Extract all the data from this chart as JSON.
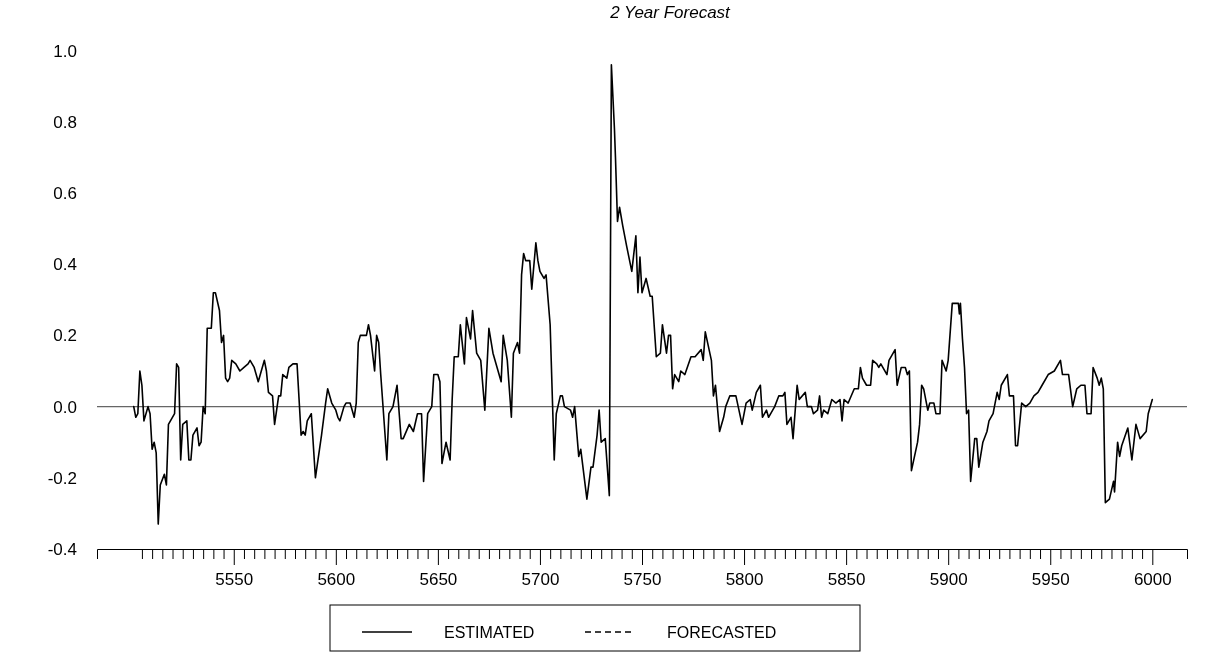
{
  "chart_data": {
    "type": "line",
    "title": "2 Year Forecast",
    "x": [
      5501,
      5502,
      5503,
      5504,
      5505,
      5506,
      5508,
      5509,
      5510,
      5511,
      5512,
      5513,
      5514,
      5516,
      5517,
      5518,
      5521,
      5522,
      5523,
      5524,
      5525,
      5527,
      5528,
      5529,
      5530,
      5532,
      5533,
      5534,
      5535,
      5536,
      5537,
      5539,
      5540,
      5541,
      5543,
      5544,
      5545,
      5546,
      5547,
      5548,
      5549,
      5551,
      5553,
      5555,
      5557,
      5558,
      5560,
      5562,
      5563,
      5565,
      5566,
      5567,
      5569,
      5570,
      5572,
      5573,
      5574,
      5576,
      5577,
      5579,
      5581,
      5583,
      5584,
      5585,
      5586,
      5588,
      5590,
      5592,
      5593,
      5595,
      5596,
      5598,
      5600,
      5601,
      5602,
      5604,
      5605,
      5607,
      5609,
      5610,
      5611,
      5612,
      5614,
      5615,
      5616,
      5617,
      5619,
      5620,
      5621,
      5622,
      5625,
      5626,
      5628,
      5630,
      5632,
      5633,
      5636,
      5638,
      5640,
      5642,
      5643,
      5645,
      5647,
      5648,
      5650,
      5651,
      5652,
      5654,
      5656,
      5657,
      5658,
      5660,
      5661,
      5663,
      5664,
      5666,
      5667,
      5669,
      5671,
      5673,
      5675,
      5677,
      5681,
      5682,
      5684,
      5686,
      5687,
      5689,
      5690,
      5691,
      5692,
      5693,
      5695,
      5696,
      5698,
      5699,
      5700,
      5702,
      5703,
      5705,
      5707,
      5708,
      5710,
      5711,
      5712,
      5715,
      5716,
      5717,
      5719,
      5720,
      5723,
      5725,
      5726,
      5728,
      5729,
      5730,
      5732,
      5734,
      5735,
      5736.5,
      5737,
      5738,
      5739,
      5740.5,
      5742.5,
      5745,
      5747,
      5748,
      5749,
      5750,
      5752,
      5754,
      5755,
      5757,
      5759,
      5760,
      5762,
      5763,
      5764,
      5765,
      5766,
      5768,
      5769,
      5771,
      5774,
      5776,
      5779,
      5780,
      5781,
      5784,
      5785,
      5786,
      5788,
      5790,
      5791,
      5793,
      5796,
      5799,
      5801,
      5803,
      5804,
      5806,
      5808,
      5809,
      5811,
      5812,
      5815,
      5817,
      5819,
      5820,
      5821,
      5823,
      5824,
      5826,
      5827,
      5830,
      5831,
      5833,
      5834,
      5836,
      5837,
      5838,
      5839,
      5841,
      5843,
      5845,
      5847,
      5848,
      5849,
      5851,
      5854,
      5856,
      5857,
      5858,
      5860,
      5862,
      5863,
      5865,
      5866,
      5867,
      5870,
      5871,
      5874,
      5875,
      5877,
      5879,
      5880,
      5881,
      5882,
      5885,
      5886,
      5887,
      5888,
      5890,
      5891,
      5893,
      5894,
      5896,
      5897,
      5899,
      5900,
      5902,
      5905,
      5905.5,
      5906,
      5907,
      5908,
      5909,
      5910,
      5911,
      5913,
      5914,
      5915,
      5917,
      5919,
      5920,
      5922,
      5924,
      5925,
      5926,
      5929,
      5930,
      5932,
      5933,
      5934,
      5936,
      5938,
      5940,
      5942,
      5944,
      5946,
      5949,
      5952,
      5955,
      5956,
      5959,
      5961,
      5963,
      5965,
      5967,
      5968,
      5970,
      5971,
      5973,
      5974,
      5975,
      5976,
      5977,
      5979,
      5981,
      5981.5,
      5983,
      5984,
      5985,
      5988,
      5990,
      5992,
      5994,
      5997,
      5998,
      6000
    ],
    "series": [
      {
        "name": "ESTIMATED",
        "color": "#000000",
        "line_style": "solid",
        "values": [
          0.0,
          -0.03,
          -0.02,
          0.1,
          0.06,
          -0.04,
          0.0,
          -0.02,
          -0.12,
          -0.1,
          -0.13,
          -0.33,
          -0.22,
          -0.19,
          -0.22,
          -0.05,
          -0.02,
          0.12,
          0.11,
          -0.15,
          -0.05,
          -0.04,
          -0.15,
          -0.15,
          -0.08,
          -0.06,
          -0.11,
          -0.1,
          0.0,
          -0.02,
          0.22,
          0.22,
          0.32,
          0.32,
          0.27,
          0.18,
          0.2,
          0.08,
          0.07,
          0.08,
          0.13,
          0.12,
          0.1,
          0.11,
          0.12,
          0.13,
          0.11,
          0.07,
          0.09,
          0.13,
          0.1,
          0.04,
          0.03,
          -0.05,
          0.03,
          0.03,
          0.09,
          0.08,
          0.11,
          0.12,
          0.12,
          -0.08,
          -0.07,
          -0.08,
          -0.04,
          -0.02,
          -0.2,
          -0.12,
          -0.08,
          0.01,
          0.05,
          0.01,
          -0.01,
          -0.03,
          -0.04,
          0.0,
          0.01,
          0.01,
          -0.03,
          0.01,
          0.18,
          0.2,
          0.2,
          0.2,
          0.23,
          0.2,
          0.1,
          0.2,
          0.18,
          0.09,
          -0.15,
          -0.02,
          0.0,
          0.06,
          -0.09,
          -0.09,
          -0.05,
          -0.07,
          -0.02,
          -0.02,
          -0.21,
          -0.02,
          0.0,
          0.09,
          0.09,
          0.07,
          -0.16,
          -0.1,
          -0.15,
          0.02,
          0.14,
          0.14,
          0.23,
          0.12,
          0.25,
          0.19,
          0.27,
          0.15,
          0.13,
          -0.01,
          0.22,
          0.15,
          0.07,
          0.2,
          0.13,
          -0.03,
          0.15,
          0.18,
          0.15,
          0.37,
          0.43,
          0.41,
          0.41,
          0.33,
          0.46,
          0.41,
          0.38,
          0.36,
          0.37,
          0.23,
          -0.15,
          -0.02,
          0.03,
          0.03,
          0.0,
          -0.01,
          -0.03,
          0.0,
          -0.14,
          -0.12,
          -0.26,
          -0.17,
          -0.17,
          -0.08,
          -0.01,
          -0.1,
          -0.09,
          -0.25,
          0.96,
          0.78,
          0.7,
          0.52,
          0.56,
          0.51,
          0.45,
          0.38,
          0.48,
          0.32,
          0.42,
          0.32,
          0.36,
          0.31,
          0.31,
          0.14,
          0.15,
          0.23,
          0.15,
          0.2,
          0.2,
          0.05,
          0.09,
          0.07,
          0.1,
          0.09,
          0.14,
          0.14,
          0.16,
          0.13,
          0.21,
          0.13,
          0.03,
          0.06,
          -0.07,
          -0.03,
          0.0,
          0.03,
          0.03,
          -0.05,
          0.01,
          0.02,
          -0.01,
          0.04,
          0.06,
          -0.03,
          -0.01,
          -0.03,
          0.0,
          0.03,
          0.03,
          0.04,
          -0.05,
          -0.03,
          -0.09,
          0.06,
          0.02,
          0.04,
          0.0,
          0.0,
          -0.02,
          -0.01,
          0.03,
          -0.03,
          -0.01,
          -0.02,
          0.02,
          0.01,
          0.02,
          -0.04,
          0.02,
          0.01,
          0.05,
          0.05,
          0.11,
          0.08,
          0.06,
          0.06,
          0.13,
          0.12,
          0.11,
          0.12,
          0.09,
          0.13,
          0.16,
          0.06,
          0.11,
          0.11,
          0.09,
          0.1,
          -0.18,
          -0.1,
          -0.05,
          0.06,
          0.05,
          -0.01,
          0.01,
          0.01,
          -0.02,
          -0.02,
          0.13,
          0.1,
          0.13,
          0.29,
          0.29,
          0.26,
          0.29,
          0.19,
          0.11,
          -0.02,
          -0.01,
          -0.21,
          -0.09,
          -0.09,
          -0.17,
          -0.1,
          -0.07,
          -0.04,
          -0.02,
          0.04,
          0.02,
          0.06,
          0.09,
          0.03,
          0.03,
          -0.11,
          -0.11,
          0.01,
          0.0,
          0.01,
          0.03,
          0.04,
          0.06,
          0.09,
          0.1,
          0.13,
          0.09,
          0.09,
          0.0,
          0.05,
          0.06,
          0.06,
          -0.02,
          -0.02,
          0.11,
          0.08,
          0.06,
          0.08,
          0.05,
          -0.27,
          -0.26,
          -0.21,
          -0.24,
          -0.1,
          -0.14,
          -0.11,
          -0.06,
          -0.15,
          -0.05,
          -0.09,
          -0.07,
          -0.02,
          0.02
        ]
      },
      {
        "name": "FORECASTED",
        "color": "#000000",
        "line_style": "dashed",
        "values": [
          null,
          null,
          null,
          null,
          null,
          null,
          null,
          null,
          null,
          null,
          null,
          null,
          null,
          null,
          null,
          null,
          null,
          null,
          null,
          null,
          null,
          null,
          null,
          null,
          null,
          null,
          null,
          null,
          null,
          null,
          null,
          null,
          null,
          null,
          null,
          null,
          null,
          null,
          null,
          null,
          null,
          null,
          null,
          null,
          null,
          null,
          null,
          null,
          null,
          null,
          null,
          null,
          null,
          null,
          null,
          null,
          null,
          null,
          null,
          null,
          null,
          null,
          null,
          null,
          null,
          null,
          null,
          null,
          null,
          null,
          null,
          null,
          null,
          null,
          null,
          null,
          null,
          null,
          null,
          null,
          null,
          null,
          null,
          null,
          null,
          null,
          null,
          null,
          null,
          null,
          null,
          null,
          null,
          null,
          null,
          null,
          null,
          null,
          null,
          null,
          null,
          null,
          null,
          null,
          null,
          null,
          null,
          null,
          null,
          null,
          null,
          null,
          null,
          null,
          null,
          null,
          null,
          null,
          null,
          null,
          null,
          null,
          null,
          null,
          null,
          null,
          null,
          null,
          null,
          null,
          null,
          null,
          null,
          null,
          null,
          null,
          null,
          null,
          null,
          null,
          null,
          null,
          null,
          null,
          null,
          null,
          null,
          null,
          null,
          null,
          null,
          null,
          null,
          null,
          null,
          null,
          null,
          null,
          null,
          null,
          null,
          null,
          null,
          null,
          null,
          null,
          null,
          null,
          null,
          null,
          null,
          null,
          null,
          null,
          null,
          null,
          null,
          null,
          null,
          null,
          null,
          null,
          null,
          null,
          null,
          null,
          null,
          null,
          null,
          null,
          null,
          null,
          null,
          null,
          null,
          null,
          null,
          null,
          null,
          null,
          null,
          null,
          null,
          null,
          null,
          null,
          null,
          null,
          null,
          null,
          null,
          null,
          null,
          null,
          null,
          null,
          null,
          null,
          null,
          null,
          null,
          null,
          null,
          null,
          null,
          null,
          null,
          null,
          null,
          null,
          null,
          null,
          null,
          null,
          null,
          null,
          null,
          null,
          null,
          null,
          null,
          null,
          null,
          null,
          null,
          null,
          null,
          null,
          null,
          null,
          null,
          null,
          null,
          null,
          null,
          null,
          null,
          null,
          null,
          null,
          null,
          null,
          null,
          null,
          null,
          null,
          null,
          null,
          null,
          null,
          null,
          null,
          null,
          null,
          null,
          null,
          null,
          null,
          null,
          null,
          null,
          null,
          null,
          null,
          null,
          null,
          null,
          null,
          null,
          null,
          null,
          null,
          null,
          null,
          null,
          null,
          null,
          null,
          null,
          null,
          null,
          null,
          null,
          null,
          null,
          null,
          null,
          null,
          null,
          null,
          null,
          null,
          null,
          null,
          null,
          null,
          null,
          null,
          null,
          null,
          null
        ]
      }
    ],
    "xlim": [
      5483,
      6017
    ],
    "xticks": [
      {
        "value": 5505,
        "label": null
      },
      {
        "value": 5510,
        "label": null
      },
      {
        "value": 5515,
        "label": null
      },
      {
        "value": 5520,
        "label": null
      },
      {
        "value": 5525,
        "label": null
      },
      {
        "value": 5530,
        "label": null
      },
      {
        "value": 5535,
        "label": null
      },
      {
        "value": 5540,
        "label": null
      },
      {
        "value": 5545,
        "label": null
      },
      5550,
      {
        "value": 5555,
        "label": null
      },
      {
        "value": 5560,
        "label": null
      },
      {
        "value": 5565,
        "label": null
      },
      {
        "value": 5570,
        "label": null
      },
      {
        "value": 5575,
        "label": null
      },
      {
        "value": 5580,
        "label": null
      },
      {
        "value": 5585,
        "label": null
      },
      {
        "value": 5590,
        "label": null
      },
      {
        "value": 5595,
        "label": null
      },
      5600,
      {
        "value": 5605,
        "label": null
      },
      {
        "value": 5610,
        "label": null
      },
      {
        "value": 5615,
        "label": null
      },
      {
        "value": 5620,
        "label": null
      },
      {
        "value": 5625,
        "label": null
      },
      {
        "value": 5630,
        "label": null
      },
      {
        "value": 5635,
        "label": null
      },
      {
        "value": 5640,
        "label": null
      },
      {
        "value": 5645,
        "label": null
      },
      5650,
      {
        "value": 5655,
        "label": null
      },
      {
        "value": 5660,
        "label": null
      },
      {
        "value": 5665,
        "label": null
      },
      {
        "value": 5670,
        "label": null
      },
      {
        "value": 5675,
        "label": null
      },
      {
        "value": 5680,
        "label": null
      },
      {
        "value": 5685,
        "label": null
      },
      {
        "value": 5690,
        "label": null
      },
      {
        "value": 5695,
        "label": null
      },
      5700,
      {
        "value": 5705,
        "label": null
      },
      {
        "value": 5710,
        "label": null
      },
      {
        "value": 5715,
        "label": null
      },
      {
        "value": 5720,
        "label": null
      },
      {
        "value": 5725,
        "label": null
      },
      {
        "value": 5730,
        "label": null
      },
      {
        "value": 5735,
        "label": null
      },
      {
        "value": 5740,
        "label": null
      },
      {
        "value": 5745,
        "label": null
      },
      5750,
      {
        "value": 5755,
        "label": null
      },
      {
        "value": 5760,
        "label": null
      },
      {
        "value": 5765,
        "label": null
      },
      {
        "value": 5770,
        "label": null
      },
      {
        "value": 5775,
        "label": null
      },
      {
        "value": 5780,
        "label": null
      },
      {
        "value": 5785,
        "label": null
      },
      {
        "value": 5790,
        "label": null
      },
      {
        "value": 5795,
        "label": null
      },
      5800,
      {
        "value": 5805,
        "label": null
      },
      {
        "value": 5810,
        "label": null
      },
      {
        "value": 5815,
        "label": null
      },
      {
        "value": 5820,
        "label": null
      },
      {
        "value": 5825,
        "label": null
      },
      {
        "value": 5830,
        "label": null
      },
      {
        "value": 5835,
        "label": null
      },
      {
        "value": 5840,
        "label": null
      },
      {
        "value": 5845,
        "label": null
      },
      5850,
      {
        "value": 5855,
        "label": null
      },
      {
        "value": 5860,
        "label": null
      },
      {
        "value": 5865,
        "label": null
      },
      {
        "value": 5870,
        "label": null
      },
      {
        "value": 5875,
        "label": null
      },
      {
        "value": 5880,
        "label": null
      },
      {
        "value": 5885,
        "label": null
      },
      {
        "value": 5890,
        "label": null
      },
      {
        "value": 5895,
        "label": null
      },
      5900,
      {
        "value": 5905,
        "label": null
      },
      {
        "value": 5910,
        "label": null
      },
      {
        "value": 5915,
        "label": null
      },
      {
        "value": 5920,
        "label": null
      },
      {
        "value": 5925,
        "label": null
      },
      {
        "value": 5930,
        "label": null
      },
      {
        "value": 5935,
        "label": null
      },
      {
        "value": 5940,
        "label": null
      },
      {
        "value": 5945,
        "label": null
      },
      5950,
      {
        "value": 5955,
        "label": null
      },
      {
        "value": 5960,
        "label": null
      },
      {
        "value": 5965,
        "label": null
      },
      {
        "value": 5970,
        "label": null
      },
      {
        "value": 5975,
        "label": null
      },
      {
        "value": 5980,
        "label": null
      },
      {
        "value": 5985,
        "label": null
      },
      {
        "value": 5990,
        "label": null
      },
      {
        "value": 5995,
        "label": null
      },
      6000
    ],
    "ylim": [
      -0.4,
      1.0
    ],
    "yticks": [
      -0.4,
      -0.2,
      {
        "value": 0,
        "label": "0.0"
      },
      0.2,
      0.4,
      0.6,
      0.8,
      {
        "value": 1,
        "label": "1.0"
      }
    ],
    "ref_lines": [
      {
        "axis": "y",
        "value": 0,
        "color": "#666666"
      }
    ],
    "legend": "bottom",
    "grid": false,
    "marker": "none"
  }
}
